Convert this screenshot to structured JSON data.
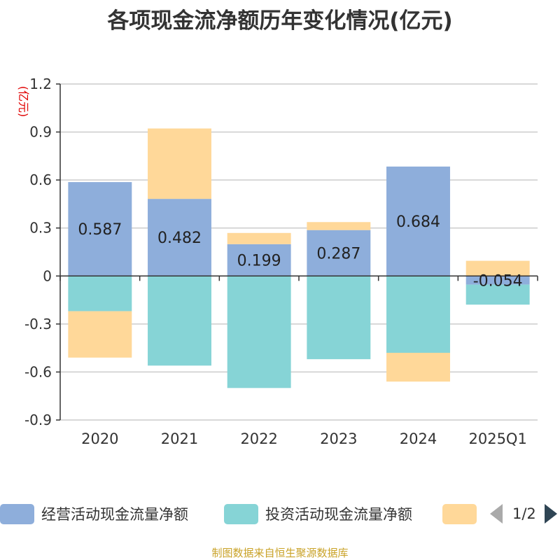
{
  "chart_data": {
    "type": "bar",
    "stacked": true,
    "title": "各项现金流净额历年变化情况(亿元)",
    "ylabel": "(亿元)",
    "categories": [
      "2020",
      "2021",
      "2022",
      "2023",
      "2024",
      "2025Q1"
    ],
    "ylim": [
      -0.9,
      1.2
    ],
    "yticks": [
      "1.2",
      "0.9",
      "0.6",
      "0.3",
      "0",
      "-0.3",
      "-0.6",
      "-0.9"
    ],
    "grid": true,
    "series": [
      {
        "name": "经营活动现金流量净额",
        "color": "#8eaedb",
        "values": [
          0.587,
          0.482,
          0.199,
          0.287,
          0.684,
          -0.054
        ],
        "labels": [
          "0.587",
          "0.482",
          "0.199",
          "0.287",
          "0.684",
          "-0.054"
        ]
      },
      {
        "name": "投资活动现金流量净额",
        "color": "#86d4d6",
        "values": [
          -0.22,
          -0.56,
          -0.7,
          -0.52,
          -0.48,
          -0.125
        ]
      },
      {
        "name": "",
        "color": "#ffd899",
        "values": [
          -0.29,
          0.44,
          0.07,
          0.05,
          -0.18,
          0.095
        ]
      }
    ]
  },
  "legend": {
    "items": [
      {
        "label": "经营活动现金流量净额",
        "color": "#8eaedb"
      },
      {
        "label": "投资活动现金流量净额",
        "color": "#86d4d6"
      },
      {
        "label": "",
        "color": "#ffd899"
      }
    ],
    "pager": "1/2"
  },
  "source": "制图数据来自恒生聚源数据库"
}
